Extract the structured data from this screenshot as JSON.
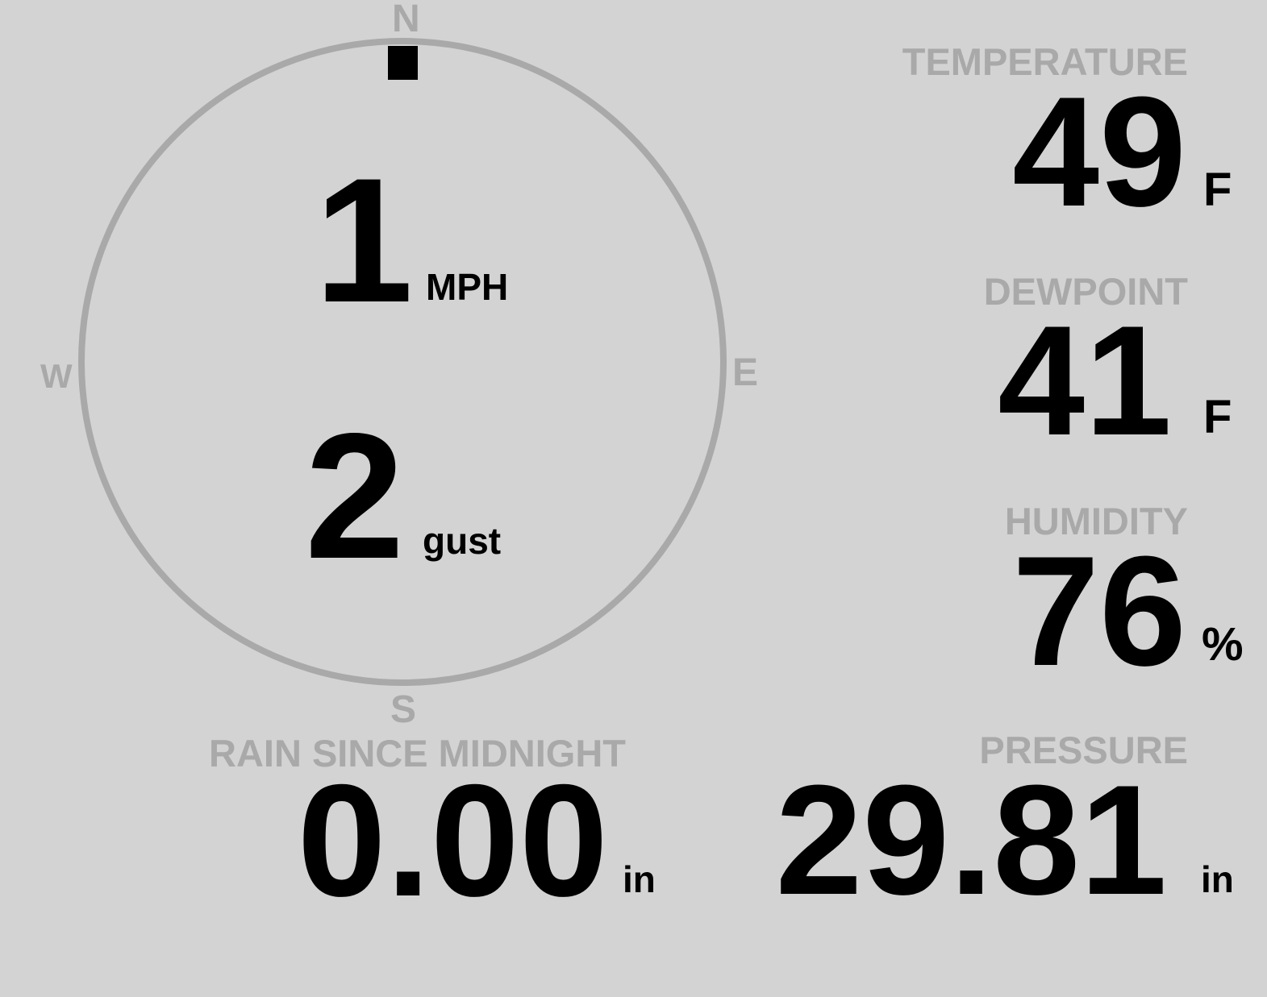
{
  "compass": {
    "north": "N",
    "south": "S",
    "east": "E",
    "west": "W",
    "wind_direction_deg": 0,
    "wind_speed": "1",
    "wind_speed_unit": "MPH",
    "gust": "2",
    "gust_unit": "gust",
    "colors": {
      "ring": "#a9a9a9",
      "marker": "#000000"
    }
  },
  "temperature": {
    "label": "TEMPERATURE",
    "value": "49",
    "unit": "F"
  },
  "dewpoint": {
    "label": "DEWPOINT",
    "value": "41",
    "unit": "F"
  },
  "humidity": {
    "label": "HUMIDITY",
    "value": "76",
    "unit": "%"
  },
  "rain": {
    "label": "RAIN SINCE MIDNIGHT",
    "value": "0.00",
    "unit": "in"
  },
  "pressure": {
    "label": "PRESSURE",
    "value": "29.81",
    "unit": "in"
  },
  "colors": {
    "background": "#d3d3d3",
    "label": "#a9a9a9",
    "value": "#000000"
  }
}
